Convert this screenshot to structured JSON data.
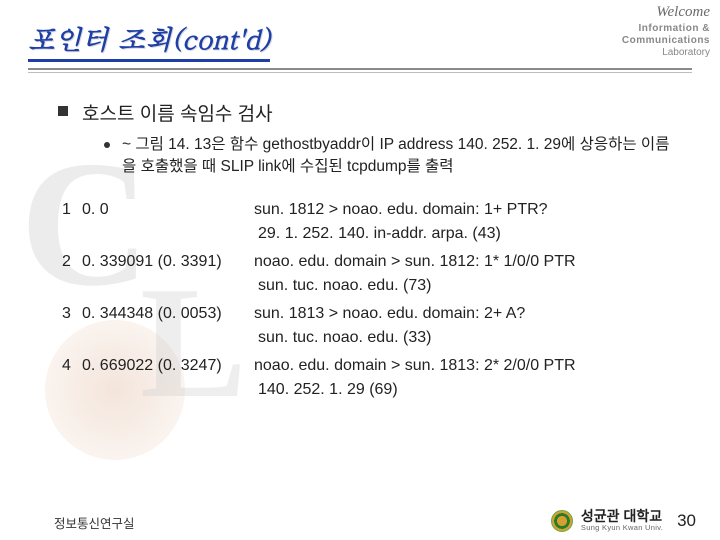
{
  "header": {
    "title": "포인터 조회(cont'd)",
    "welcome": "Welcome",
    "logo_line1": "Information &",
    "logo_line2": "Communications",
    "logo_line3": "Laboratory"
  },
  "bullet": {
    "main": "호스트 이름 속임수 검사",
    "sub": "~ 그림 14. 13은 함수 gethostbyaddr이 IP address 140. 252. 1. 29에 상응하는 이름을 호출했을 때 SLIP link에 수집된 tcpdump를 출력"
  },
  "dump": [
    {
      "n": "1",
      "t": "0. 0",
      "line1": "sun. 1812 > noao. edu. domain: 1+  PTR?",
      "line2": "29. 1. 252. 140. in-addr. arpa.  (43)"
    },
    {
      "n": "2",
      "t": "0. 339091 (0. 3391)",
      "line1": "noao. edu. domain > sun. 1812: 1* 1/0/0 PTR",
      "line2": "sun. tuc. noao. edu.  (73)"
    },
    {
      "n": "3",
      "t": "0. 344348 (0. 0053)",
      "line1": "sun. 1813 > noao. edu. domain: 2+  A?",
      "line2": "sun. tuc. noao. edu.  (33)"
    },
    {
      "n": "4",
      "t": "0. 669022 (0. 3247)",
      "line1": "noao. edu. domain > sun. 1813: 2*  2/0/0  PTR",
      "line2": "140. 252. 1. 29 (69)"
    }
  ],
  "footer": {
    "lab": "정보통신연구실",
    "univ": "성균관 대학교",
    "univ_en": "Sung Kyun Kwan Univ.",
    "page": "30"
  }
}
